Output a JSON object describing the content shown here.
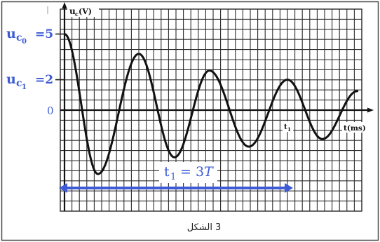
{
  "caption": {
    "label": "الشكل",
    "number": "3"
  },
  "colors": {
    "annotation": "#3d5bd4",
    "trace": "#111111",
    "grid": "#2b2b2b",
    "frame": "#4a4a4a"
  },
  "chart_data": {
    "type": "line",
    "xlabel": "t(ms)",
    "ylabel": {
      "symbol": "u",
      "sub": "c",
      "unit": "(V)"
    },
    "xlim": [
      0,
      4
    ],
    "ylim": [
      -6.6,
      6.6
    ],
    "grid": true,
    "series": [
      {
        "x": [
          0,
          0.45,
          1,
          1.48,
          1.95,
          2.48,
          3,
          3.47,
          3.94
        ],
        "y": [
          5,
          -4.2,
          3.7,
          -3.1,
          2.6,
          -2.4,
          2,
          -1.9,
          1.25
        ]
      }
    ],
    "y_markers": [
      {
        "value": 5,
        "symbol": "u",
        "sub": "c",
        "subsub": "0",
        "text": "=5"
      },
      {
        "value": 2,
        "symbol": "u",
        "sub": "c",
        "subsub": "1",
        "text": "=2"
      },
      {
        "value": 0,
        "text": "0"
      }
    ],
    "x_markers": [
      {
        "value": 3,
        "symbol": "t",
        "sub": "1"
      }
    ],
    "span": {
      "from": 0,
      "to": 3,
      "symbol": "t",
      "sub": "1",
      "text": "= 3",
      "var": "T"
    }
  }
}
